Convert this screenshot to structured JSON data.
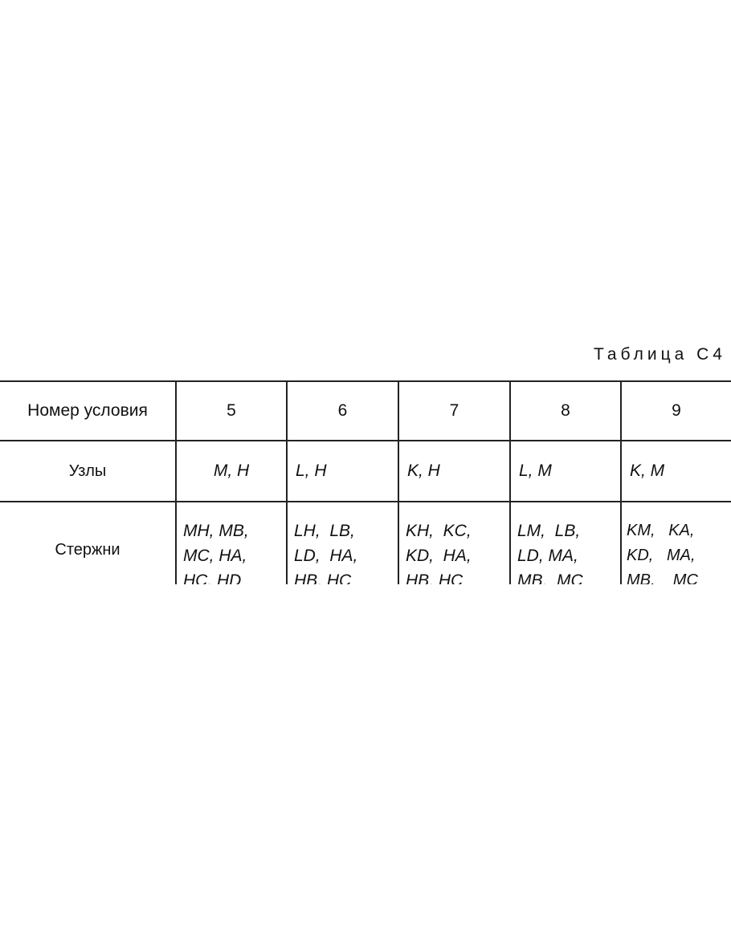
{
  "caption": "Таблица С4",
  "table": {
    "row_headers": [
      "Номер условия",
      "Узлы",
      "Стержни"
    ],
    "columns": [
      {
        "number": "5",
        "nodes": "M, H",
        "rods": [
          "MH, MB,",
          "MC, HA,",
          "HC, HD"
        ]
      },
      {
        "number": "6",
        "nodes": "L, H",
        "rods": [
          "LH,  LB,",
          "LD,  HA,",
          "HB, HC"
        ]
      },
      {
        "number": "7",
        "nodes": "K, H",
        "rods": [
          "KH,  KC,",
          "KD,  HA,",
          "HB, HC"
        ]
      },
      {
        "number": "8",
        "nodes": "L, M",
        "rods": [
          "LM,  LB,",
          "LD, MA,",
          "MB,  MC"
        ]
      },
      {
        "number": "9",
        "nodes": "K, M",
        "rods": [
          "KM,   KA,",
          "KD,   MA,",
          "MB,    MC"
        ]
      }
    ]
  }
}
